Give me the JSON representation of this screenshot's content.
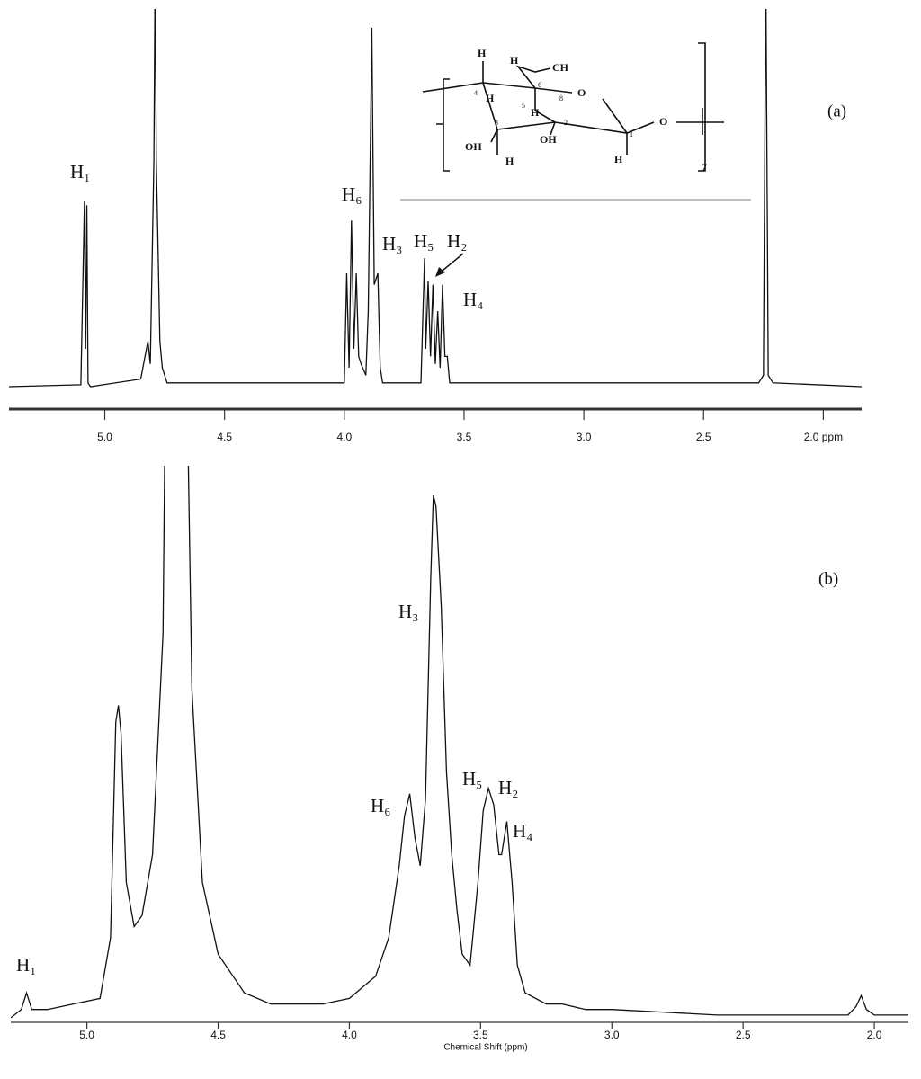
{
  "chart_data": [
    {
      "type": "line",
      "panel_label": "(a)",
      "x": [
        5.4,
        5.1,
        5.085,
        5.08,
        5.075,
        5.07,
        5.06,
        4.85,
        4.82,
        4.81,
        4.795,
        4.79,
        4.785,
        4.77,
        4.76,
        4.74,
        4.0,
        3.99,
        3.98,
        3.97,
        3.96,
        3.95,
        3.94,
        3.93,
        3.91,
        3.9,
        3.885,
        3.88,
        3.875,
        3.86,
        3.85,
        3.84,
        3.68,
        3.665,
        3.66,
        3.65,
        3.64,
        3.63,
        3.62,
        3.61,
        3.6,
        3.59,
        3.58,
        3.57,
        3.56,
        2.27,
        2.25,
        2.24,
        2.23,
        2.21,
        1.84
      ],
      "series": [
        {
          "color": "#111111",
          "values": [
            0,
            0.5,
            49,
            10,
            48,
            1,
            0,
            2,
            12,
            6,
            60,
            110,
            60,
            12,
            5,
            1,
            1,
            30,
            5,
            44,
            10,
            30,
            8,
            6,
            3,
            20,
            95,
            60,
            27,
            30,
            5,
            1,
            1,
            34,
            10,
            28,
            8,
            27,
            6,
            20,
            5,
            27,
            8,
            8,
            1,
            1,
            3,
            110,
            3,
            1,
            0
          ]
        }
      ],
      "annotations": [
        "H₁",
        "H₆",
        "H₃",
        "H₅",
        "H₂",
        "H₄"
      ],
      "xlim": [
        5.4,
        1.84
      ],
      "ylim": [
        0,
        100
      ],
      "xticks": [
        {
          "value": 5,
          "label": "5.0"
        },
        {
          "value": 4.5,
          "label": "4.5"
        },
        {
          "value": 4,
          "label": "4.0"
        },
        {
          "value": 3.5,
          "label": "3.5"
        },
        {
          "value": 3,
          "label": "3.0"
        },
        {
          "value": 2.5,
          "label": "2.5"
        },
        {
          "value": 2,
          "label": "2.0 ppm"
        }
      ]
    },
    {
      "type": "line",
      "panel_label": "(b)",
      "x_label": "Chemical Shift (ppm)",
      "x": [
        5.29,
        5.25,
        5.23,
        5.21,
        5.15,
        5.05,
        4.95,
        4.91,
        4.89,
        4.88,
        4.87,
        4.85,
        4.82,
        4.79,
        4.75,
        4.71,
        4.7,
        4.62,
        4.6,
        4.56,
        4.5,
        4.4,
        4.3,
        4.2,
        4.1,
        4.0,
        3.9,
        3.85,
        3.81,
        3.79,
        3.77,
        3.75,
        3.73,
        3.71,
        3.69,
        3.68,
        3.67,
        3.65,
        3.63,
        3.61,
        3.59,
        3.57,
        3.54,
        3.51,
        3.49,
        3.47,
        3.45,
        3.43,
        3.42,
        3.4,
        3.38,
        3.36,
        3.33,
        3.25,
        3.19,
        3.1,
        3.0,
        2.8,
        2.6,
        2.4,
        2.2,
        2.1,
        2.07,
        2.05,
        2.03,
        2.0,
        1.87
      ],
      "series": [
        {
          "color": "#111111",
          "values": [
            0.5,
            2,
            5,
            2,
            2,
            3,
            4,
            15,
            54,
            57,
            52,
            25,
            17,
            19,
            30,
            70,
            120,
            120,
            60,
            25,
            12,
            5,
            3,
            3,
            3,
            4,
            8,
            15,
            28,
            37,
            41,
            33,
            28,
            40,
            80,
            95,
            93,
            75,
            45,
            30,
            20,
            12,
            10,
            25,
            38,
            42,
            39,
            30,
            30,
            36,
            25,
            10,
            5,
            3,
            3,
            2,
            2,
            1.5,
            1,
            1,
            1,
            1,
            2.5,
            4.5,
            2,
            1,
            1
          ]
        }
      ],
      "annotations": [
        "H₁",
        "H₆",
        "H₃",
        "H₅",
        "H₂",
        "H₄"
      ],
      "xlim": [
        5.29,
        1.87
      ],
      "ylim": [
        0,
        100
      ],
      "xticks": [
        {
          "value": 5,
          "label": "5.0"
        },
        {
          "value": 4.5,
          "label": "4.5"
        },
        {
          "value": 4,
          "label": "4.0"
        },
        {
          "value": 3.5,
          "label": "3.5"
        },
        {
          "value": 3,
          "label": "3.0"
        },
        {
          "value": 2.5,
          "label": "2.5"
        },
        {
          "value": 2,
          "label": "2.0"
        }
      ]
    }
  ],
  "structure_labels": [
    "H",
    "H",
    "CH",
    "H",
    "6",
    "4",
    "O",
    "5",
    "H",
    "8",
    "3",
    "2",
    "OH",
    "OH",
    "H",
    "1",
    "O",
    "H",
    "7"
  ]
}
